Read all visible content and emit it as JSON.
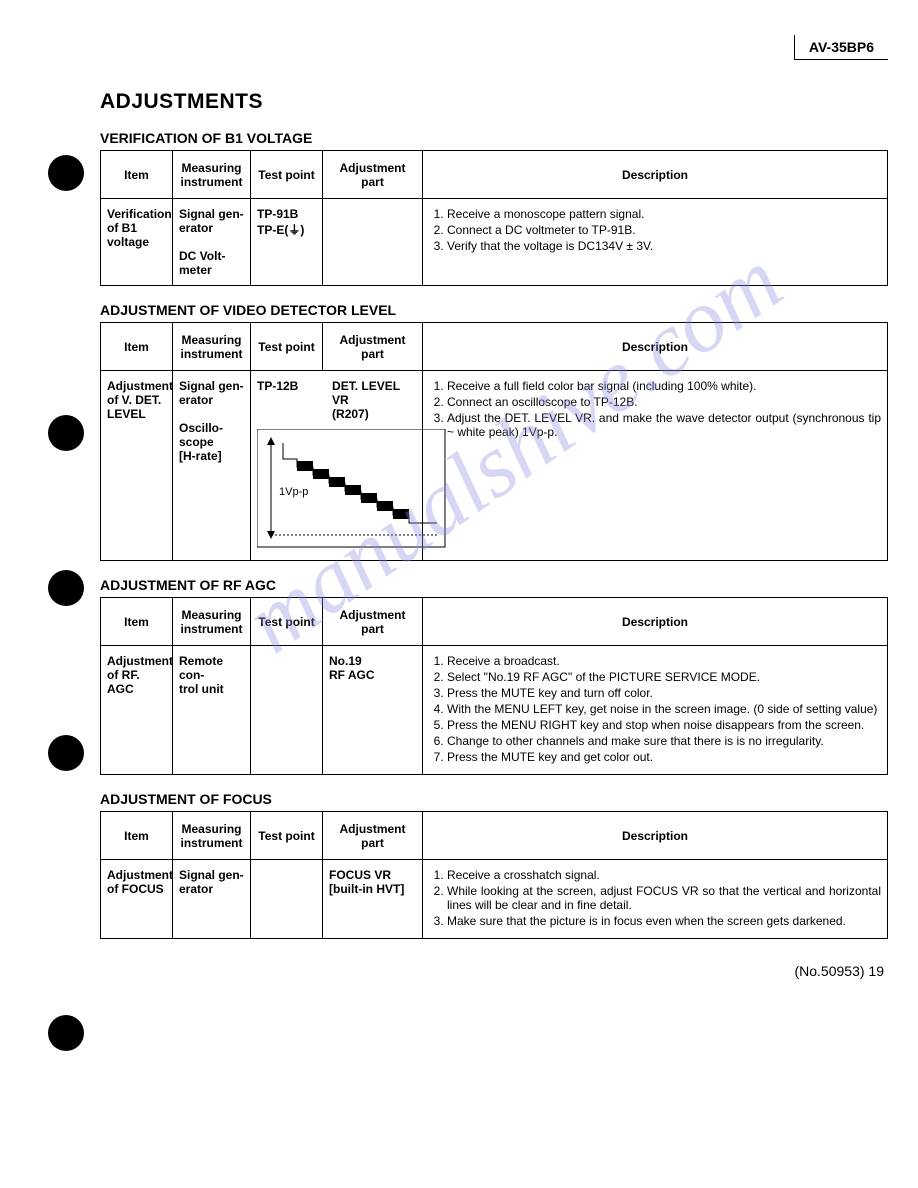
{
  "model": "AV-35BP6",
  "main_title": "ADJUSTMENTS",
  "watermark": "manualshive.com",
  "footer": "(No.50953) 19",
  "bullet_positions": [
    155,
    415,
    570,
    735,
    1015
  ],
  "headers": {
    "item": "Item",
    "instrument": "Measuring instrument",
    "testpoint": "Test point",
    "adjpart": "Adjustment part",
    "description": "Description"
  },
  "sections": [
    {
      "title": "VERIFICATION OF B1 VOLTAGE",
      "item": "Verification of B1 voltage",
      "instrument": "Signal gen-\nerator\n\nDC Volt-\nmeter",
      "testpoint": "TP-91B\nTP-E(⏚)",
      "adjpart": "",
      "desc": [
        "Receive a monoscope pattern signal.",
        "Connect a DC voltmeter to TP-91B.",
        "Verify that the voltage is DC134V ± 3V."
      ]
    },
    {
      "title": "ADJUSTMENT OF VIDEO DETECTOR LEVEL",
      "item": "Adjustment of V. DET. LEVEL",
      "instrument": "Signal gen-\nerator\n\nOscillo-\nscope\n[H-rate]",
      "testpoint": "TP-12B",
      "adjpart": "DET. LEVEL VR\n(R207)",
      "desc": [
        "Receive a full field color bar signal (including 100% white).",
        "Connect an oscilloscope to TP-12B.",
        "Adjust the DET. LEVEL VR. and make the wave detector output (synchronous tip ~ white peak) 1Vp-p."
      ],
      "has_waveform": true,
      "waveform_label": "1Vp-p"
    },
    {
      "title": "ADJUSTMENT OF RF AGC",
      "item": "Adjustment of RF. AGC",
      "instrument": "Remote con-\ntrol unit",
      "testpoint": "",
      "adjpart": "No.19\nRF AGC",
      "desc": [
        "Receive a broadcast.",
        "Select \"No.19 RF AGC\" of the PICTURE SERVICE MODE.",
        "Press the MUTE key and turn off color.",
        "With the MENU LEFT key, get noise in the screen image. (0 side of setting value)",
        "Press the MENU RIGHT key and stop when noise disappears from the screen.",
        "Change to other channels and make sure that there is is no irregularity.",
        "Press the MUTE key and get color out."
      ]
    },
    {
      "title": "ADJUSTMENT OF FOCUS",
      "item": "Adjustment of FOCUS",
      "instrument": "Signal gen-\nerator",
      "testpoint": "",
      "adjpart": "FOCUS VR\n[built-in HVT]",
      "desc": [
        "Receive a crosshatch signal.",
        "While looking at the screen, adjust FOCUS VR so that the vertical and horizontal lines will be clear and in fine detail.",
        "Make sure that the picture is in focus even when the screen gets darkened."
      ]
    }
  ]
}
